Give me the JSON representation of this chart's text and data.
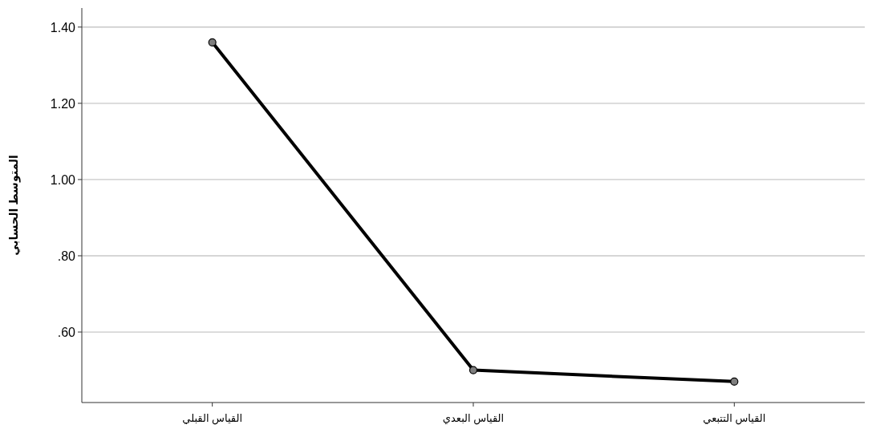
{
  "chart_data": {
    "type": "line",
    "ylabel": "المتوسط الحسابي",
    "categories": [
      "القياس القبلي",
      "القياس البعدي",
      "القياس التتبعي"
    ],
    "values": [
      1.36,
      0.5,
      0.47
    ],
    "color": "#000000",
    "marker": "circle",
    "line_style": "solid",
    "grid": "y",
    "ylim": [
      0.415,
      1.45
    ],
    "yticks": [
      {
        "value": 0.6,
        "label": ".60"
      },
      {
        "value": 0.8,
        "label": ".80"
      },
      {
        "value": 1.0,
        "label": "1.00"
      },
      {
        "value": 1.2,
        "label": "1.20"
      },
      {
        "value": 1.4,
        "label": "1.40"
      }
    ]
  }
}
